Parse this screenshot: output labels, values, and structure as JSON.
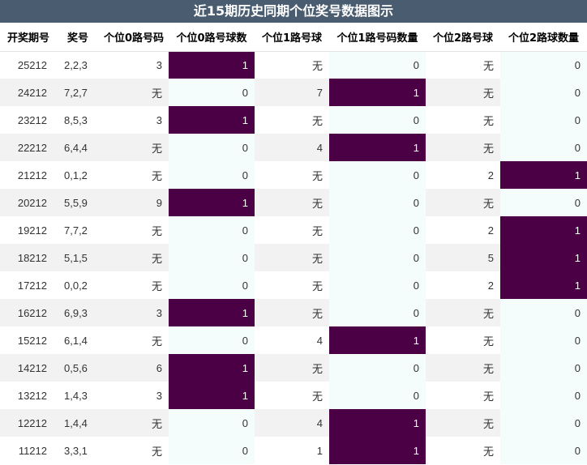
{
  "title": "近15期历史同期个位奖号数据图示",
  "columns": [
    "开奖期号",
    "奖号",
    "个位0路号码",
    "个位0路号球数",
    "个位1路号球",
    "个位1路号码数量",
    "个位2路号球",
    "个位2路球数量"
  ],
  "colors": {
    "title_bg": "#4a5d70",
    "hit_bg": "#4b0046",
    "cnt_bg": "#f5fcfc",
    "stripe_bg": "#f2f2f2"
  },
  "rows": [
    {
      "qh": "25212",
      "jh": "2,2,3",
      "r0": "3",
      "c0": "1",
      "r1": "无",
      "c1": "0",
      "r2": "无",
      "c2": "0"
    },
    {
      "qh": "24212",
      "jh": "7,2,7",
      "r0": "无",
      "c0": "0",
      "r1": "7",
      "c1": "1",
      "r2": "无",
      "c2": "0"
    },
    {
      "qh": "23212",
      "jh": "8,5,3",
      "r0": "3",
      "c0": "1",
      "r1": "无",
      "c1": "0",
      "r2": "无",
      "c2": "0"
    },
    {
      "qh": "22212",
      "jh": "6,4,4",
      "r0": "无",
      "c0": "0",
      "r1": "4",
      "c1": "1",
      "r2": "无",
      "c2": "0"
    },
    {
      "qh": "21212",
      "jh": "0,1,2",
      "r0": "无",
      "c0": "0",
      "r1": "无",
      "c1": "0",
      "r2": "2",
      "c2": "1"
    },
    {
      "qh": "20212",
      "jh": "5,5,9",
      "r0": "9",
      "c0": "1",
      "r1": "无",
      "c1": "0",
      "r2": "无",
      "c2": "0"
    },
    {
      "qh": "19212",
      "jh": "7,7,2",
      "r0": "无",
      "c0": "0",
      "r1": "无",
      "c1": "0",
      "r2": "2",
      "c2": "1"
    },
    {
      "qh": "18212",
      "jh": "5,1,5",
      "r0": "无",
      "c0": "0",
      "r1": "无",
      "c1": "0",
      "r2": "5",
      "c2": "1"
    },
    {
      "qh": "17212",
      "jh": "0,0,2",
      "r0": "无",
      "c0": "0",
      "r1": "无",
      "c1": "0",
      "r2": "2",
      "c2": "1"
    },
    {
      "qh": "16212",
      "jh": "6,9,3",
      "r0": "3",
      "c0": "1",
      "r1": "无",
      "c1": "0",
      "r2": "无",
      "c2": "0"
    },
    {
      "qh": "15212",
      "jh": "6,1,4",
      "r0": "无",
      "c0": "0",
      "r1": "4",
      "c1": "1",
      "r2": "无",
      "c2": "0"
    },
    {
      "qh": "14212",
      "jh": "0,5,6",
      "r0": "6",
      "c0": "1",
      "r1": "无",
      "c1": "0",
      "r2": "无",
      "c2": "0"
    },
    {
      "qh": "13212",
      "jh": "1,4,3",
      "r0": "3",
      "c0": "1",
      "r1": "无",
      "c1": "0",
      "r2": "无",
      "c2": "0"
    },
    {
      "qh": "12212",
      "jh": "1,4,4",
      "r0": "无",
      "c0": "0",
      "r1": "4",
      "c1": "1",
      "r2": "无",
      "c2": "0"
    },
    {
      "qh": "11212",
      "jh": "3,3,1",
      "r0": "无",
      "c0": "0",
      "r1": "1",
      "c1": "1",
      "r2": "无",
      "c2": "0"
    }
  ]
}
